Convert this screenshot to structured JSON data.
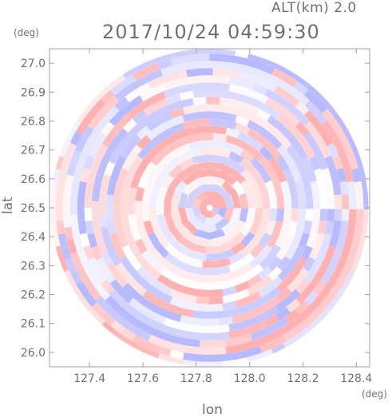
{
  "header": {
    "altitude_label": "ALT(km) 2.0",
    "timestamp": "2017/10/24 04:59:30"
  },
  "axes": {
    "x_unit": "(deg)",
    "y_unit": "(deg)",
    "x_label": "lon",
    "y_label": "lat"
  },
  "colors": {
    "positive": "#ffb0b0",
    "negative": "#b8baff",
    "neutral": "#ffffff",
    "axis": "#707070",
    "frame": "#a0a0a0"
  },
  "chart_data": {
    "type": "heatmap",
    "xlabel": "lon",
    "ylabel": "lat",
    "xlim": [
      127.25,
      128.45
    ],
    "ylim": [
      25.95,
      27.05
    ],
    "x_ticks": [
      "127.4",
      "127.6",
      "127.8",
      "128.0",
      "128.2",
      "128.4"
    ],
    "y_ticks": [
      "26.0",
      "26.1",
      "26.2",
      "26.3",
      "26.4",
      "26.5",
      "26.6",
      "26.7",
      "26.8",
      "26.9",
      "27.0"
    ],
    "center": {
      "lon": 127.85,
      "lat": 26.5
    },
    "radius_deg": 0.55,
    "grid": false
  }
}
